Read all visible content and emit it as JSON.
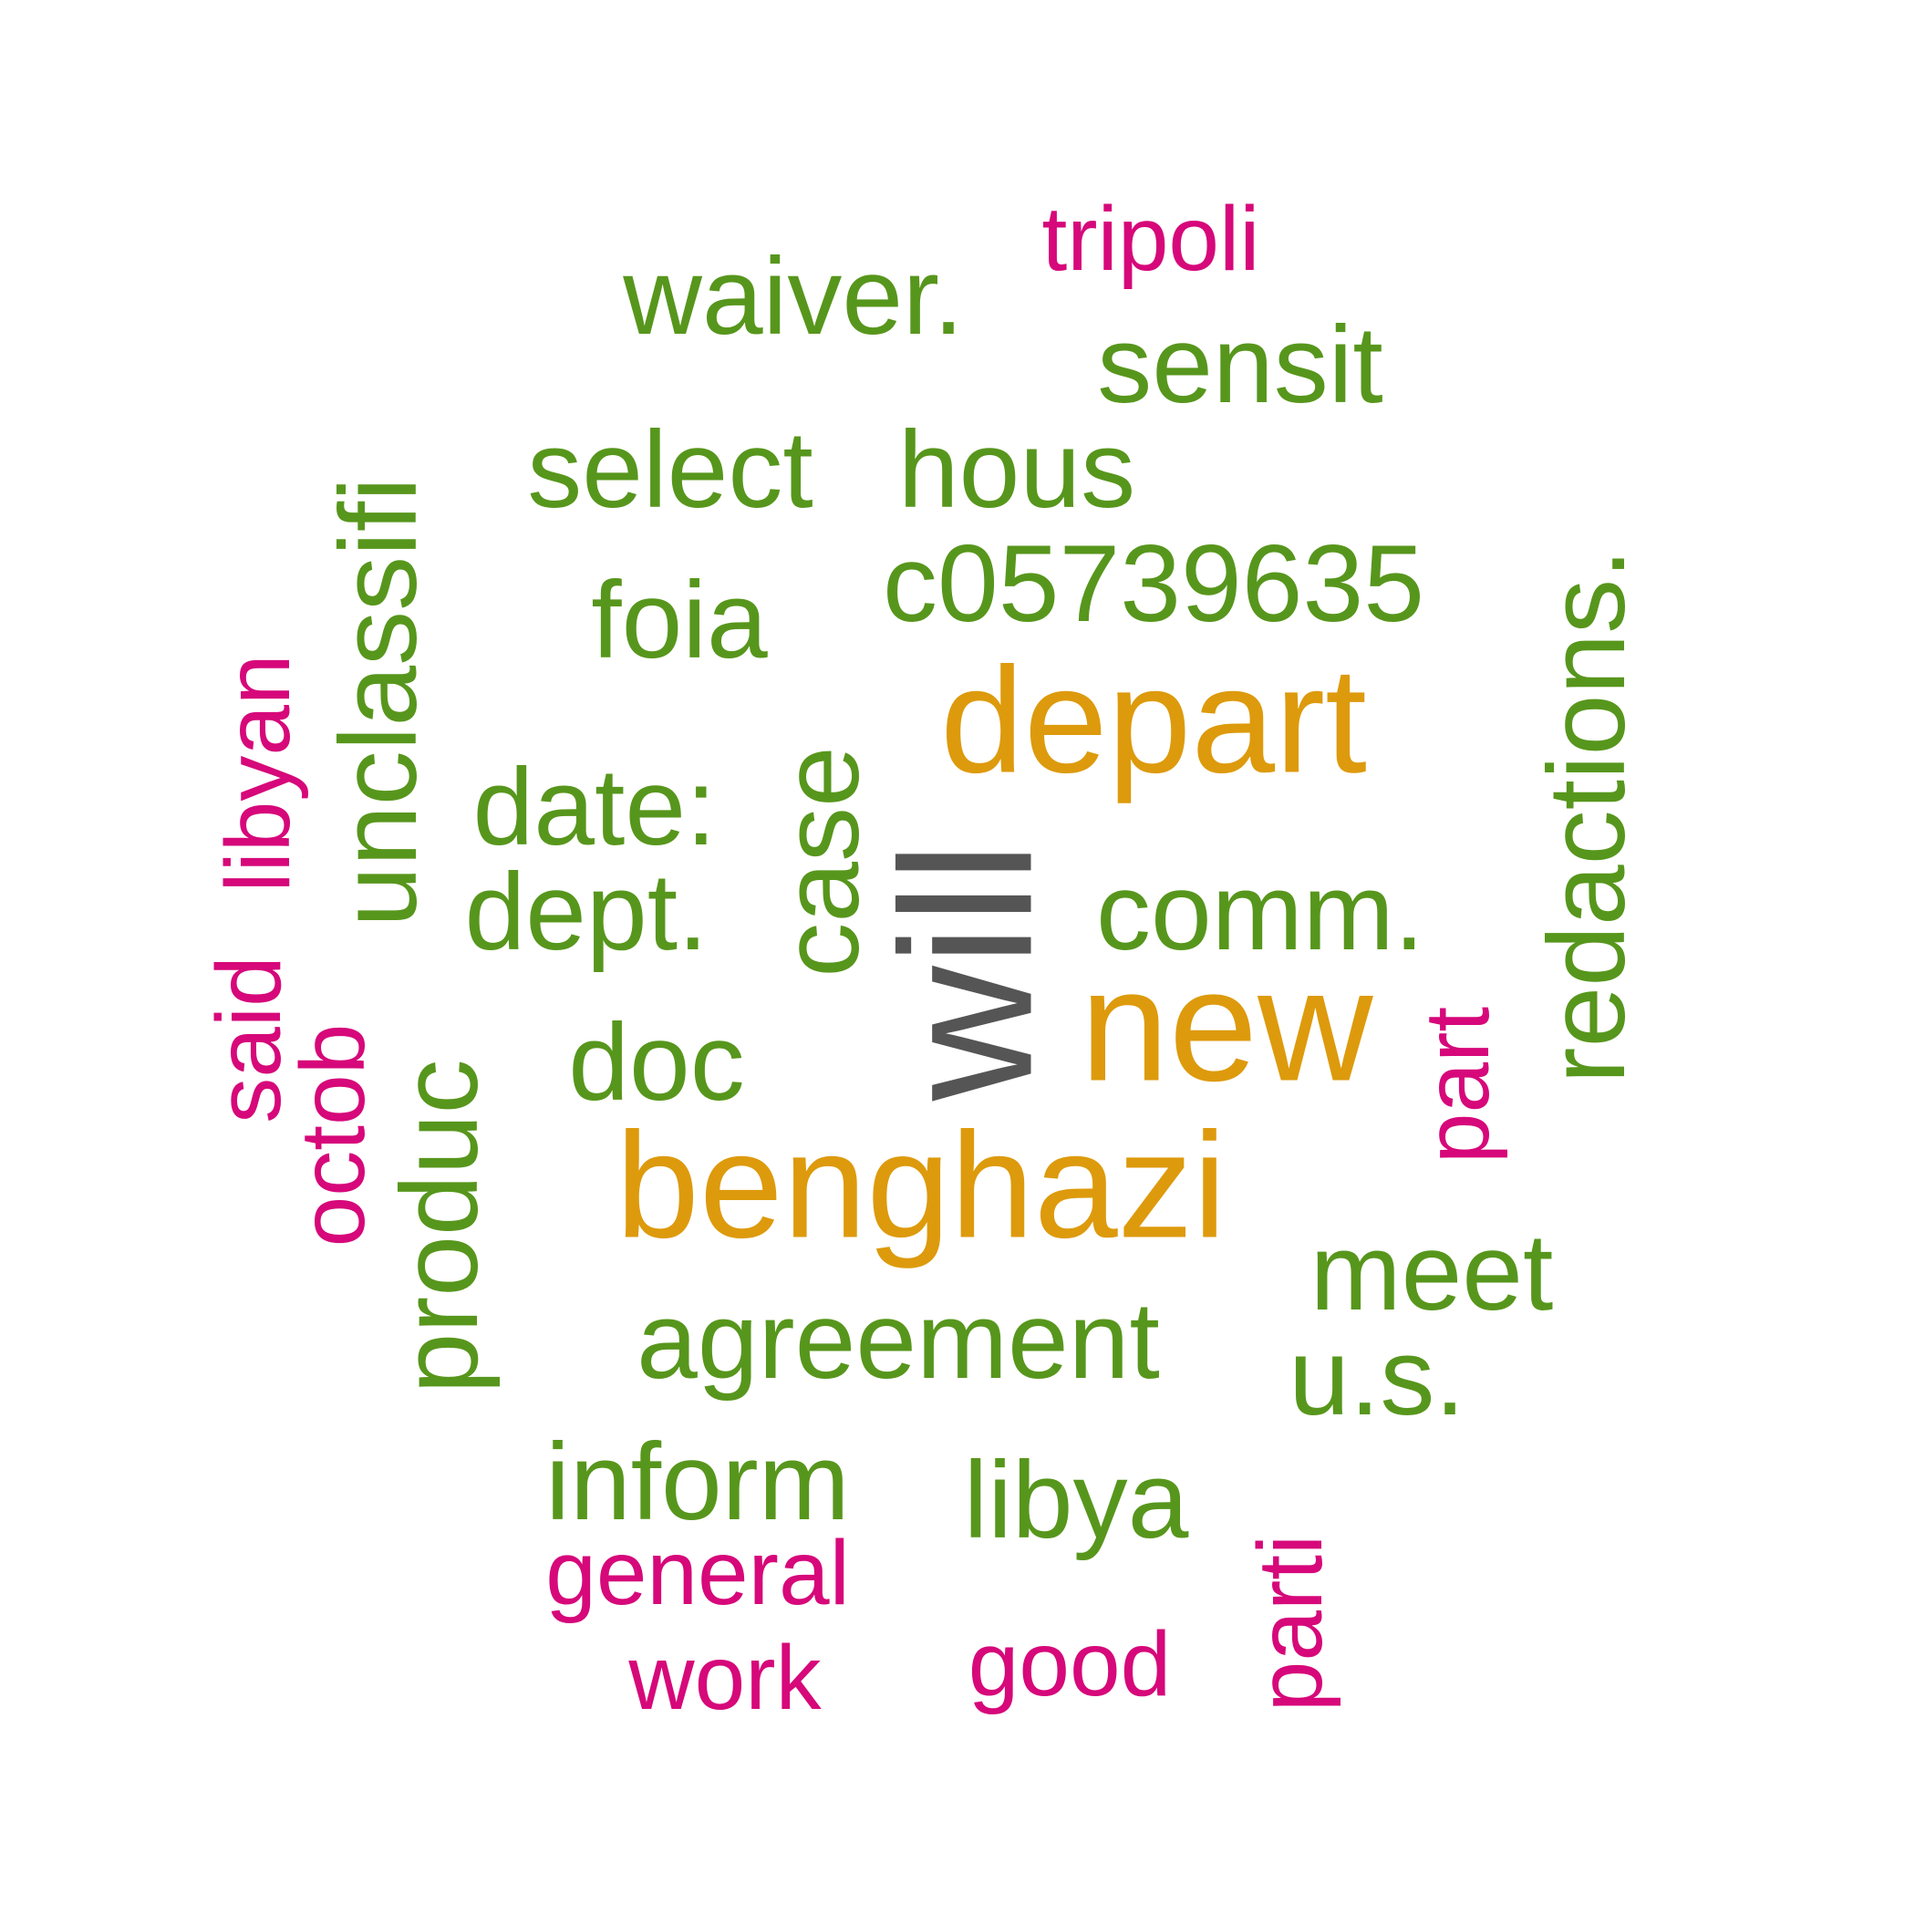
{
  "palette": {
    "dark_gray": "#555555",
    "orange": "#dd9a0c",
    "green": "#57961c",
    "magenta": "#d6087a"
  },
  "words": [
    {
      "text": "will",
      "color_key": "dark_gray"
    },
    {
      "text": "depart",
      "color_key": "orange"
    },
    {
      "text": "new",
      "color_key": "orange"
    },
    {
      "text": "benghazi",
      "color_key": "orange"
    },
    {
      "text": "waiver.",
      "color_key": "green"
    },
    {
      "text": "sensit",
      "color_key": "green"
    },
    {
      "text": "select",
      "color_key": "green"
    },
    {
      "text": "hous",
      "color_key": "green"
    },
    {
      "text": "c05739635",
      "color_key": "green"
    },
    {
      "text": "foia",
      "color_key": "green"
    },
    {
      "text": "unclassifi",
      "color_key": "green"
    },
    {
      "text": "redactions.",
      "color_key": "green"
    },
    {
      "text": "date:",
      "color_key": "green"
    },
    {
      "text": "dept.",
      "color_key": "green"
    },
    {
      "text": "case",
      "color_key": "green"
    },
    {
      "text": "comm.",
      "color_key": "green"
    },
    {
      "text": "doc",
      "color_key": "green"
    },
    {
      "text": "produc",
      "color_key": "green"
    },
    {
      "text": "meet",
      "color_key": "green"
    },
    {
      "text": "u.s.",
      "color_key": "green"
    },
    {
      "text": "agreement",
      "color_key": "green"
    },
    {
      "text": "inform",
      "color_key": "green"
    },
    {
      "text": "libya",
      "color_key": "green"
    },
    {
      "text": "tripoli",
      "color_key": "magenta"
    },
    {
      "text": "libyan",
      "color_key": "magenta"
    },
    {
      "text": "said",
      "color_key": "magenta"
    },
    {
      "text": "octob",
      "color_key": "magenta"
    },
    {
      "text": "part",
      "color_key": "magenta"
    },
    {
      "text": "general",
      "color_key": "magenta"
    },
    {
      "text": "work",
      "color_key": "magenta"
    },
    {
      "text": "good",
      "color_key": "magenta"
    },
    {
      "text": "parti",
      "color_key": "magenta"
    }
  ]
}
